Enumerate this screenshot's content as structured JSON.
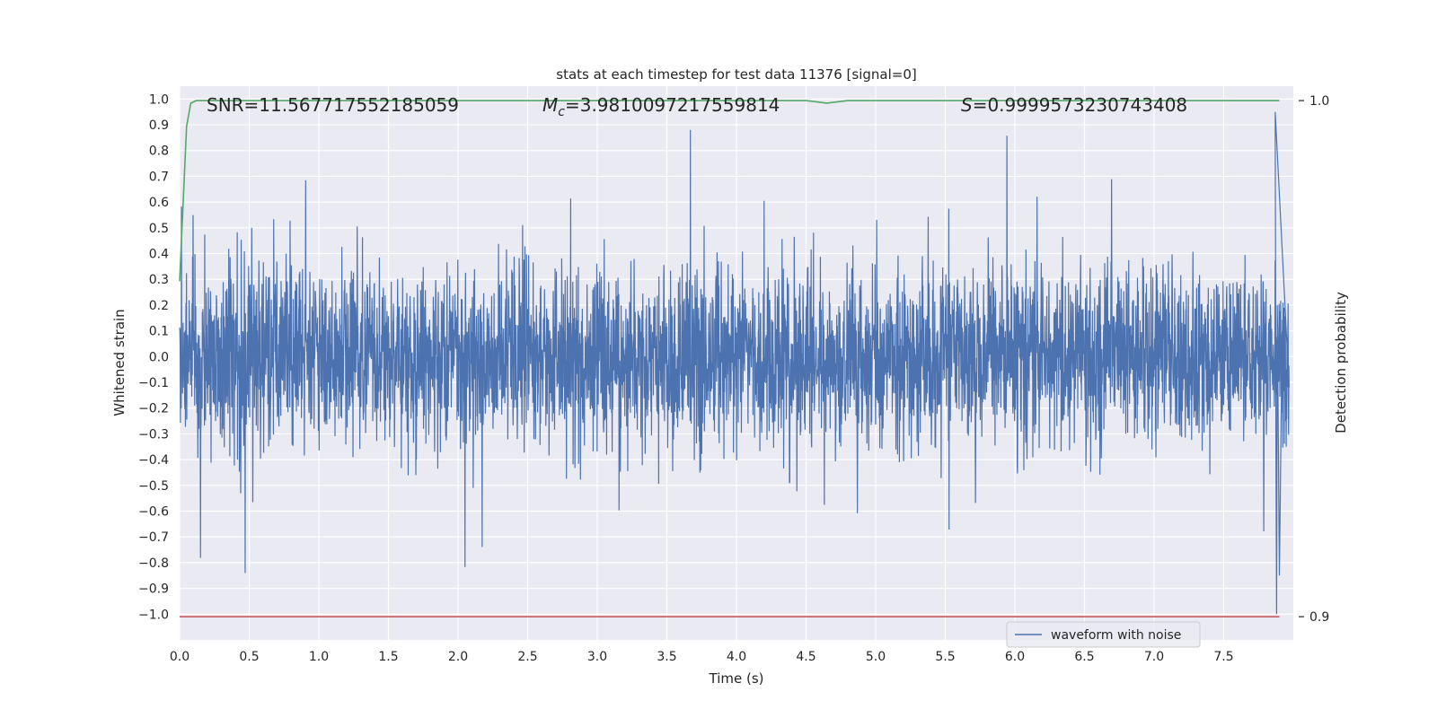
{
  "chart_data": {
    "type": "line",
    "title": "stats at each timestep for test data 11376 [signal=0]",
    "xlabel": "Time (s)",
    "ylabel": "Whitened strain",
    "y2label": "Detection probability",
    "xlim": [
      0.0,
      8.0
    ],
    "ylim": [
      -1.1,
      1.05
    ],
    "y2lim": [
      0.8955,
      1.0028
    ],
    "xticks": [
      "0.0",
      "0.5",
      "1.0",
      "1.5",
      "2.0",
      "2.5",
      "3.0",
      "3.5",
      "4.0",
      "4.5",
      "5.0",
      "5.5",
      "6.0",
      "6.5",
      "7.0",
      "7.5"
    ],
    "yticks": [
      "1.0",
      "0.9",
      "0.8",
      "0.7",
      "0.6",
      "0.5",
      "0.4",
      "0.3",
      "0.2",
      "0.1",
      "0.0",
      "−0.1",
      "−0.2",
      "−0.3",
      "−0.4",
      "−0.5",
      "−0.6",
      "−0.7",
      "−0.8",
      "−0.9",
      "−1.0"
    ],
    "y2ticks": [
      "1.0",
      "0.9"
    ],
    "grid": true,
    "legend_position": "lower-right",
    "annotations": {
      "snr": "SNR=11.567717552185059",
      "mc_symbol": "M",
      "mc_sub": "c",
      "mc_value": "=3.9810097217559814",
      "s_symbol": "S",
      "s_value": "=0.9999573230743408"
    },
    "series": [
      {
        "name": "waveform with noise",
        "color": "#4c72b0",
        "kind": "noise",
        "x_range": [
          0.0,
          7.97
        ],
        "typical_amplitude": [
          -0.45,
          0.5
        ],
        "max": 0.95,
        "min": -1.0
      },
      {
        "color": "#55a868",
        "axis": "right",
        "x": [
          0.0,
          0.05,
          0.08,
          0.12,
          0.3,
          1.0,
          2.0,
          3.0,
          4.0,
          4.5,
          4.65,
          4.8,
          5.0,
          6.0,
          7.0,
          7.9
        ],
        "y": [
          0.965,
          0.995,
          0.9995,
          1.0,
          1.0,
          1.0,
          1.0,
          1.0,
          1.0,
          1.0,
          0.9995,
          1.0,
          1.0,
          1.0,
          1.0,
          1.0
        ]
      },
      {
        "color": "#c44e52",
        "axis": "right",
        "x": [
          0.0,
          7.9
        ],
        "y": [
          0.9,
          0.9
        ]
      }
    ],
    "colors": {
      "background": "#eaeaf2",
      "grid": "#ffffff",
      "waveform": "#4c72b0",
      "probability": "#55a868",
      "threshold": "#c44e52"
    }
  }
}
